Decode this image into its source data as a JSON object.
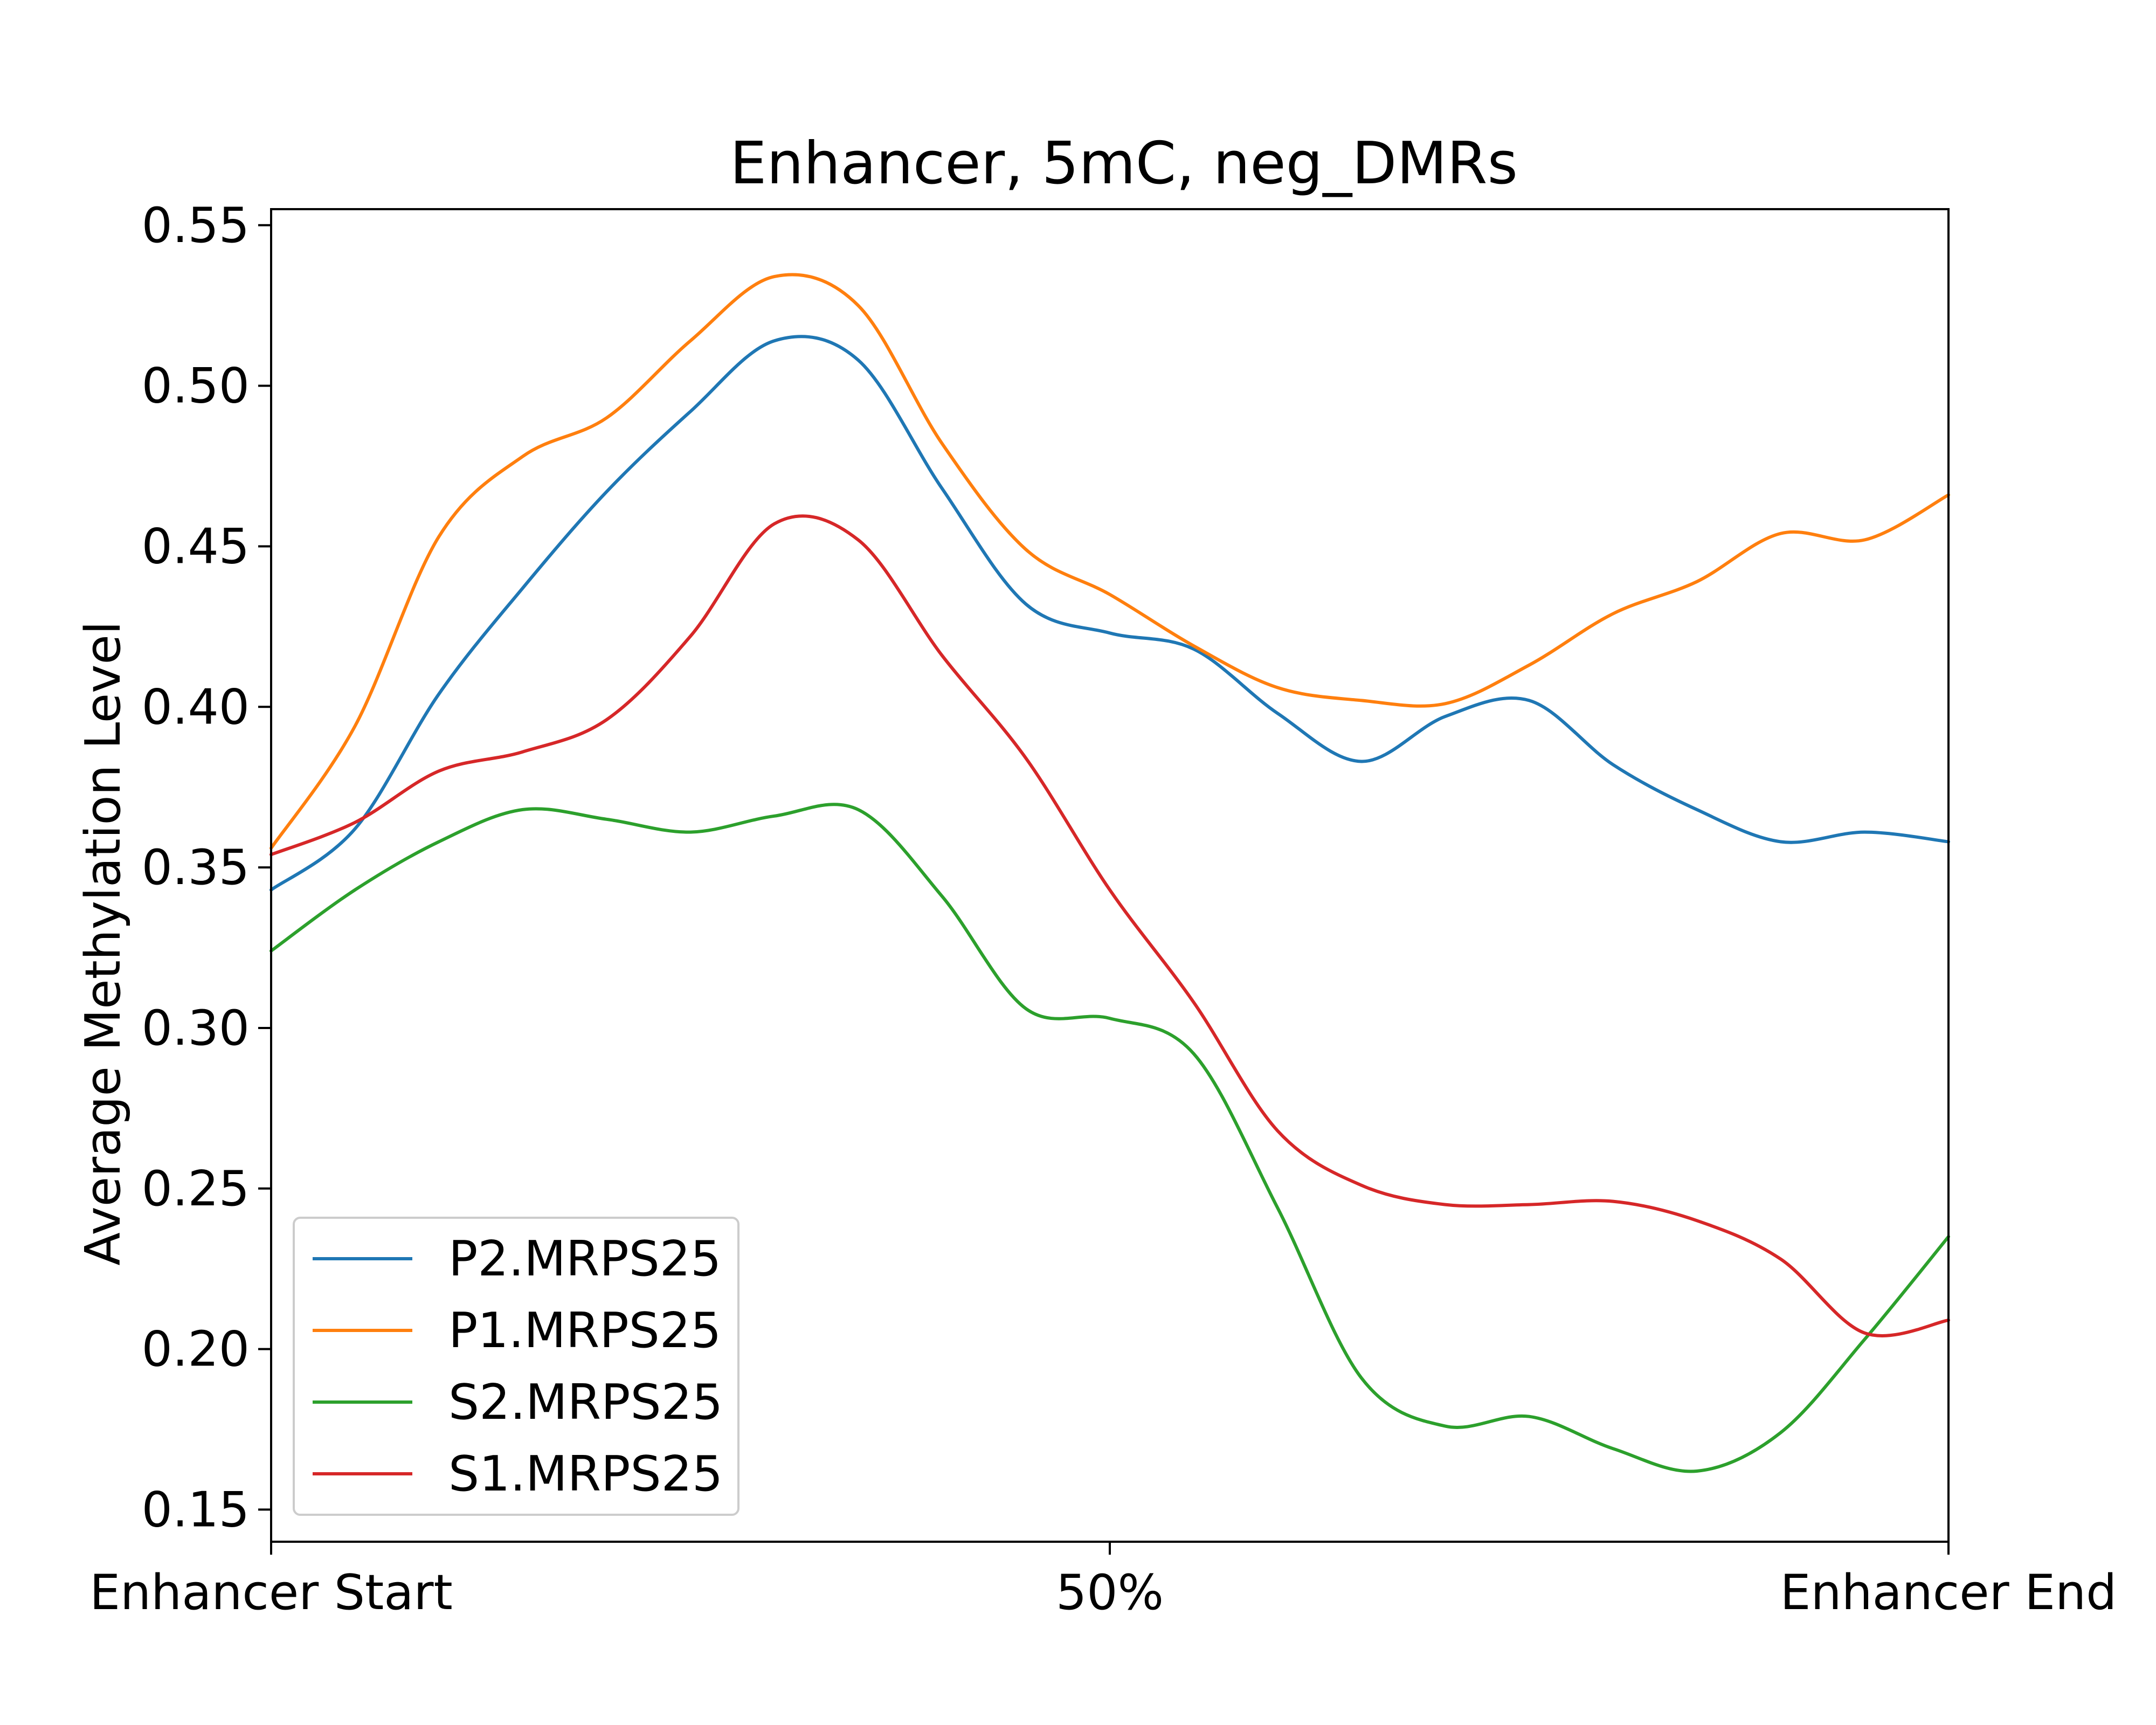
{
  "chart_data": {
    "type": "line",
    "title": "Enhancer, 5mC, neg_DMRs",
    "xlabel": "",
    "ylabel": "Average Methylation Level",
    "xlim": [
      0,
      100
    ],
    "ylim": [
      0.14,
      0.555
    ],
    "x_ticks": [
      {
        "value": 0,
        "label": "Enhancer Start"
      },
      {
        "value": 50,
        "label": "50%"
      },
      {
        "value": 100,
        "label": "Enhancer End"
      }
    ],
    "y_ticks": [
      {
        "value": 0.15,
        "label": "0.15"
      },
      {
        "value": 0.2,
        "label": "0.20"
      },
      {
        "value": 0.25,
        "label": "0.25"
      },
      {
        "value": 0.3,
        "label": "0.30"
      },
      {
        "value": 0.35,
        "label": "0.35"
      },
      {
        "value": 0.4,
        "label": "0.40"
      },
      {
        "value": 0.45,
        "label": "0.45"
      },
      {
        "value": 0.5,
        "label": "0.50"
      },
      {
        "value": 0.55,
        "label": "0.55"
      }
    ],
    "grid": false,
    "legend_position": "lower-left",
    "x": [
      0,
      5,
      10,
      15,
      20,
      25,
      30,
      35,
      40,
      45,
      50,
      55,
      60,
      65,
      70,
      75,
      80,
      85,
      90,
      95,
      100
    ],
    "series": [
      {
        "name": "P2.MRPS25",
        "color": "#1f77b4",
        "values": [
          0.343,
          0.362,
          0.404,
          0.437,
          0.467,
          0.492,
          0.514,
          0.508,
          0.468,
          0.432,
          0.423,
          0.418,
          0.398,
          0.383,
          0.397,
          0.402,
          0.382,
          0.368,
          0.358,
          0.361,
          0.358
        ]
      },
      {
        "name": "P1.MRPS25",
        "color": "#ff7f0e",
        "values": [
          0.356,
          0.394,
          0.453,
          0.478,
          0.49,
          0.514,
          0.534,
          0.525,
          0.482,
          0.449,
          0.435,
          0.419,
          0.406,
          0.402,
          0.401,
          0.413,
          0.429,
          0.439,
          0.454,
          0.452,
          0.466
        ]
      },
      {
        "name": "S2.MRPS25",
        "color": "#2ca02c",
        "values": [
          0.324,
          0.343,
          0.358,
          0.368,
          0.365,
          0.361,
          0.366,
          0.368,
          0.341,
          0.306,
          0.303,
          0.292,
          0.244,
          0.191,
          0.176,
          0.179,
          0.169,
          0.162,
          0.174,
          0.203,
          0.235
        ]
      },
      {
        "name": "S1.MRPS25",
        "color": "#d62728",
        "values": [
          0.354,
          0.364,
          0.38,
          0.386,
          0.396,
          0.422,
          0.457,
          0.452,
          0.416,
          0.384,
          0.343,
          0.308,
          0.268,
          0.251,
          0.245,
          0.245,
          0.246,
          0.24,
          0.228,
          0.205,
          0.209
        ]
      }
    ]
  }
}
